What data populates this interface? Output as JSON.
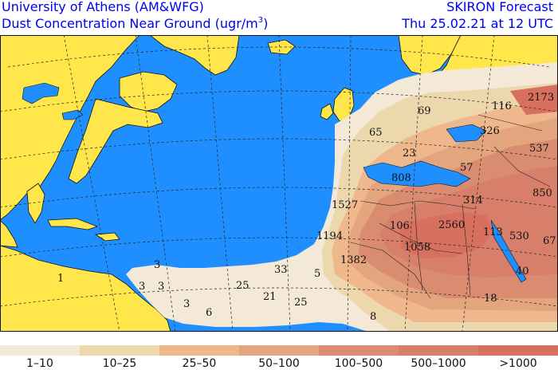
{
  "header": {
    "title_line1": "University of Athens (AM&WFG)",
    "title_line2_prefix": "Dust Concentration Near Ground (ugr/m",
    "title_line2_sup": "3",
    "title_line2_suffix": ")",
    "forecast_label": "SKIRON Forecast",
    "valid_time": "Thu 25.02.21 at 12 UTC"
  },
  "map": {
    "colors": {
      "ocean": "#1f8fff",
      "land": "#ffe64a",
      "outline": "#111111"
    },
    "values": [
      {
        "text": "69"
      },
      {
        "text": "116"
      },
      {
        "text": "2173"
      },
      {
        "text": "65"
      },
      {
        "text": "23"
      },
      {
        "text": "326"
      },
      {
        "text": "537"
      },
      {
        "text": "57"
      },
      {
        "text": "808"
      },
      {
        "text": "850"
      },
      {
        "text": "1527"
      },
      {
        "text": "314"
      },
      {
        "text": "106"
      },
      {
        "text": "2560"
      },
      {
        "text": "113"
      },
      {
        "text": "530"
      },
      {
        "text": "67"
      },
      {
        "text": "1194"
      },
      {
        "text": "1058"
      },
      {
        "text": "1382"
      },
      {
        "text": "40"
      },
      {
        "text": "3"
      },
      {
        "text": "33"
      },
      {
        "text": "1"
      },
      {
        "text": "3"
      },
      {
        "text": "3"
      },
      {
        "text": "5"
      },
      {
        "text": "25"
      },
      {
        "text": "18"
      },
      {
        "text": "21"
      },
      {
        "text": "3"
      },
      {
        "text": "6"
      },
      {
        "text": "25"
      },
      {
        "text": "8"
      }
    ]
  },
  "legend": {
    "items": [
      {
        "label": "1–10",
        "color": "#f3e9d6"
      },
      {
        "label": "10–25",
        "color": "#edd8ae"
      },
      {
        "label": "25–50",
        "color": "#efb88c"
      },
      {
        "label": "50–100",
        "color": "#e3a57e"
      },
      {
        "label": "100–500",
        "color": "#d98c70"
      },
      {
        "label": "500–1000",
        "color": "#d87f6b"
      },
      {
        "label": ">1000",
        "color": "#d7705f"
      }
    ]
  }
}
